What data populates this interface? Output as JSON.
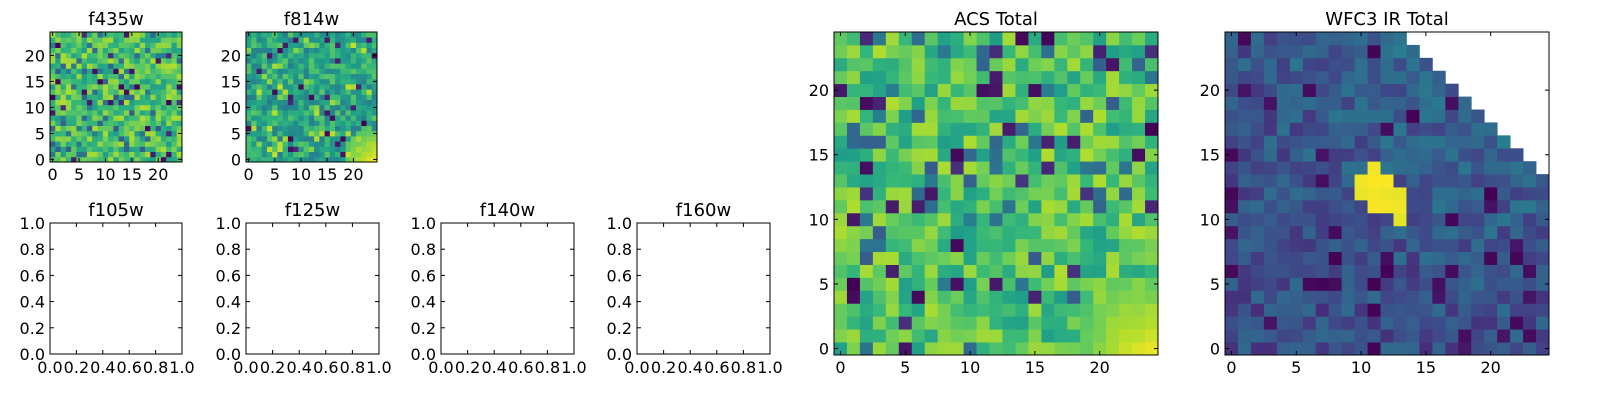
{
  "chart_data": [
    {
      "type": "heatmap",
      "title": "f435w",
      "xticks": [
        0,
        5,
        10,
        15,
        20
      ],
      "yticks": [
        0,
        5,
        10,
        15,
        20
      ],
      "size": 25,
      "range": [
        -0.5,
        24.5
      ],
      "palette": "viridis",
      "level": "high",
      "bright_corner": false,
      "mask": false,
      "blob": false
    },
    {
      "type": "heatmap",
      "title": "f814w",
      "xticks": [
        0,
        5,
        10,
        15,
        20
      ],
      "yticks": [
        0,
        5,
        10,
        15,
        20
      ],
      "size": 25,
      "range": [
        -0.5,
        24.5
      ],
      "palette": "viridis",
      "level": "mid",
      "bright_corner": true,
      "mask": false,
      "blob": false
    },
    {
      "type": "empty",
      "title": "f105w",
      "xticks": [
        "0.0",
        "0.2",
        "0.4",
        "0.6",
        "0.8",
        "1.0"
      ],
      "yticks": [
        "0.0",
        "0.2",
        "0.4",
        "0.6",
        "0.8",
        "1.0"
      ],
      "xlim": [
        0,
        1
      ],
      "ylim": [
        0,
        1
      ]
    },
    {
      "type": "empty",
      "title": "f125w",
      "xticks": [
        "0.0",
        "0.2",
        "0.4",
        "0.6",
        "0.8",
        "1.0"
      ],
      "yticks": [
        "0.0",
        "0.2",
        "0.4",
        "0.6",
        "0.8",
        "1.0"
      ],
      "xlim": [
        0,
        1
      ],
      "ylim": [
        0,
        1
      ]
    },
    {
      "type": "empty",
      "title": "f140w",
      "xticks": [
        "0.0",
        "0.2",
        "0.4",
        "0.6",
        "0.8",
        "1.0"
      ],
      "yticks": [
        "0.0",
        "0.2",
        "0.4",
        "0.6",
        "0.8",
        "1.0"
      ],
      "xlim": [
        0,
        1
      ],
      "ylim": [
        0,
        1
      ]
    },
    {
      "type": "empty",
      "title": "f160w",
      "xticks": [
        "0.0",
        "0.2",
        "0.4",
        "0.6",
        "0.8",
        "1.0"
      ],
      "yticks": [
        "0.0",
        "0.2",
        "0.4",
        "0.6",
        "0.8",
        "1.0"
      ],
      "xlim": [
        0,
        1
      ],
      "ylim": [
        0,
        1
      ]
    },
    {
      "type": "heatmap",
      "title": "ACS Total",
      "xticks": [
        0,
        5,
        10,
        15,
        20
      ],
      "yticks": [
        0,
        5,
        10,
        15,
        20
      ],
      "size": 25,
      "range": [
        -0.5,
        24.5
      ],
      "palette": "viridis",
      "level": "high",
      "bright_corner": true,
      "mask": false,
      "blob": false
    },
    {
      "type": "heatmap",
      "title": "WFC3 IR Total",
      "xticks": [
        0,
        5,
        10,
        15,
        20
      ],
      "yticks": [
        0,
        5,
        10,
        15,
        20
      ],
      "size": 25,
      "range": [
        -0.5,
        24.5
      ],
      "palette": "viridis",
      "level": "low",
      "bright_corner": false,
      "mask": true,
      "blob": true
    }
  ]
}
